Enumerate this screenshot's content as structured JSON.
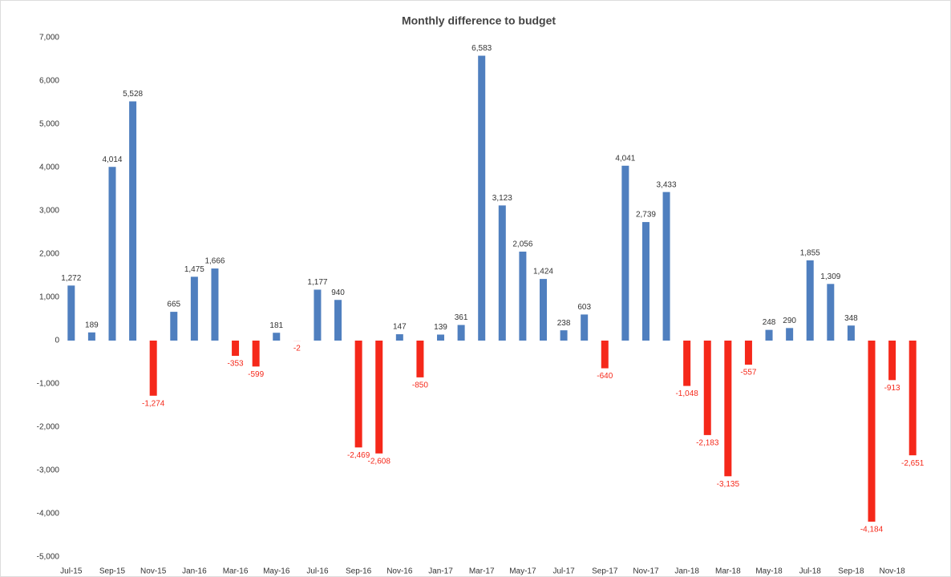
{
  "chart_data": {
    "type": "bar",
    "title": "Monthly difference to budget",
    "categories": [
      "Jul-15",
      null,
      "Sep-15",
      null,
      "Nov-15",
      null,
      "Jan-16",
      null,
      "Mar-16",
      null,
      "May-16",
      null,
      "Jul-16",
      null,
      "Sep-16",
      null,
      "Nov-16",
      null,
      "Jan-17",
      null,
      "Mar-17",
      null,
      "May-17",
      null,
      "Jul-17",
      null,
      "Sep-17",
      null,
      "Nov-17",
      null,
      "Jan-18",
      null,
      "Mar-18",
      null,
      "May-18",
      null,
      "Jul-18",
      null,
      "Sep-18",
      null,
      "Nov-18",
      null
    ],
    "values": [
      1272,
      189,
      4014,
      5528,
      -1274,
      665,
      1475,
      1666,
      -353,
      -599,
      181,
      -2,
      1177,
      940,
      -2469,
      -2608,
      147,
      -850,
      139,
      361,
      6583,
      3123,
      2056,
      1424,
      238,
      603,
      -640,
      4041,
      2739,
      3433,
      -1048,
      -2183,
      -3135,
      -557,
      248,
      290,
      1855,
      1309,
      348,
      -4184,
      -913,
      -2651
    ],
    "value_labels": [
      "1,272",
      "189",
      "4,014",
      "5,528",
      "-1,274",
      "665",
      "1,475",
      "1,666",
      "-353",
      "-599",
      "181",
      "-2",
      "1,177",
      "940",
      "-2,469",
      "-2,608",
      "147",
      "-850",
      "139",
      "361",
      "6,583",
      "3,123",
      "2,056",
      "1,424",
      "238",
      "603",
      "-640",
      "4,041",
      "2,739",
      "3,433",
      "-1,048",
      "-2,183",
      "-3,135",
      "-557",
      "248",
      "290",
      "1,855",
      "1,309",
      "348",
      "-4,184",
      "-913",
      "-2,651"
    ],
    "positive_color": "#4f7fbf",
    "negative_color": "#f5281a",
    "ylim": [
      -5000,
      7000
    ],
    "yticks": [
      {
        "value": -5000,
        "label": "-5,000"
      },
      {
        "value": -4000,
        "label": "-4,000"
      },
      {
        "value": -3000,
        "label": "-3,000"
      },
      {
        "value": -2000,
        "label": "-2,000"
      },
      {
        "value": -1000,
        "label": "-1,000"
      },
      0,
      {
        "value": 1000,
        "label": "1,000"
      },
      {
        "value": 2000,
        "label": "2,000"
      },
      {
        "value": 3000,
        "label": "3,000"
      },
      {
        "value": 4000,
        "label": "4,000"
      },
      {
        "value": 5000,
        "label": "5,000"
      },
      {
        "value": 6000,
        "label": "6,000"
      },
      {
        "value": 7000,
        "label": "7,000"
      }
    ],
    "grid": false
  }
}
